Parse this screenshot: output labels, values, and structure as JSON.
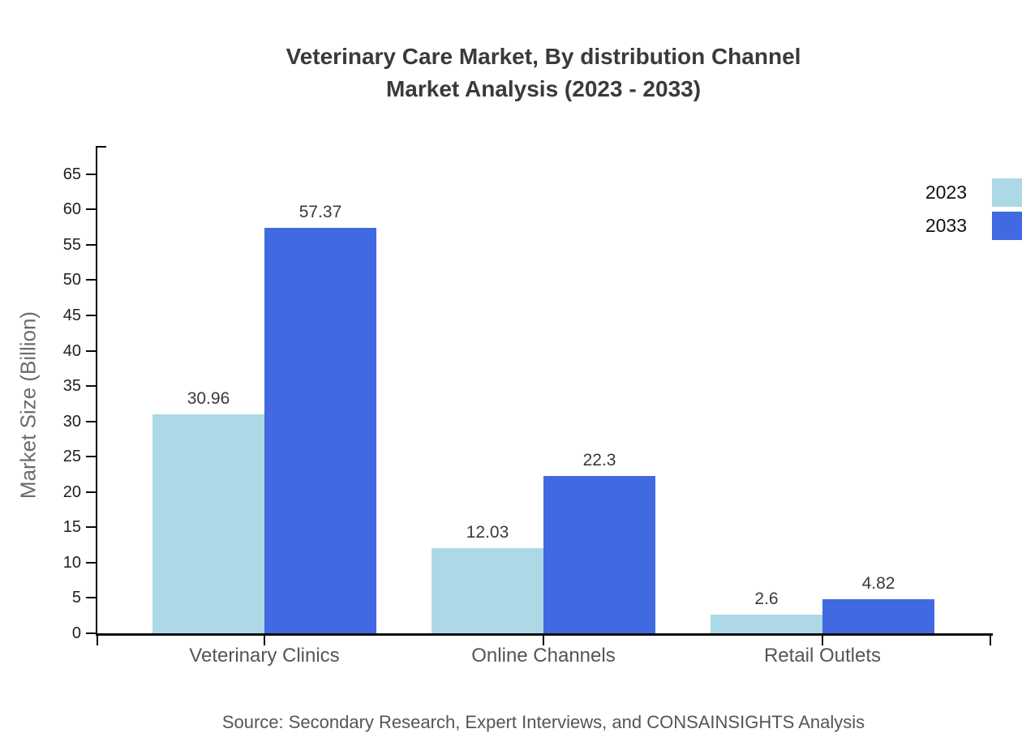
{
  "title": {
    "line1": "Veterinary Care Market, By distribution Channel",
    "line2": "Market Analysis (2023 - 2033)"
  },
  "y_axis_title": "Market Size (Billion)",
  "source": "Source: Secondary Research, Expert Interviews, and CONSAINSIGHTS Analysis",
  "legend": {
    "items": [
      {
        "label": "2023",
        "color": "#add8e6"
      },
      {
        "label": "2033",
        "color": "#4169e1"
      }
    ],
    "position": "top-right"
  },
  "chart_data": {
    "type": "bar",
    "title": "Veterinary Care Market, By distribution Channel Market Analysis (2023 - 2033)",
    "categories": [
      "Veterinary Clinics",
      "Online Channels",
      "Retail Outlets"
    ],
    "series": [
      {
        "name": "2023",
        "color": "#add8e6",
        "values": [
          30.96,
          12.03,
          2.6
        ]
      },
      {
        "name": "2033",
        "color": "#4169e1",
        "values": [
          57.37,
          22.3,
          4.82
        ]
      }
    ],
    "xlabel": "",
    "ylabel": "Market Size (Billion)",
    "ylim": [
      0,
      69
    ],
    "yticks": [
      0,
      5,
      10,
      15,
      20,
      25,
      30,
      35,
      40,
      45,
      50,
      55,
      60,
      65
    ],
    "grid": false,
    "value_labels_shown": true,
    "legend_position": "top-right"
  }
}
